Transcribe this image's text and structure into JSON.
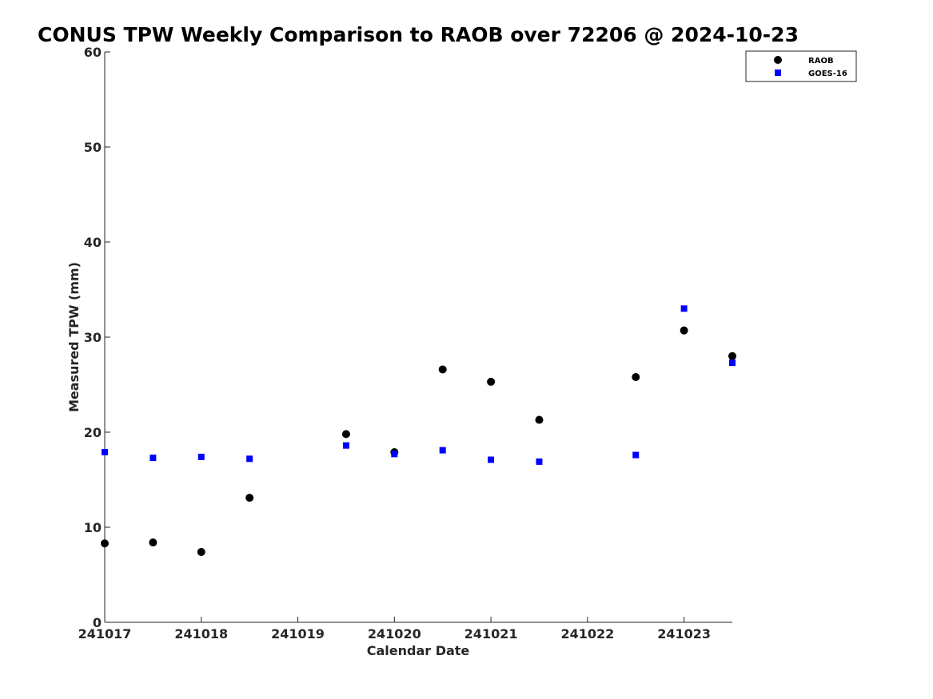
{
  "chart_data": {
    "type": "scatter",
    "title": "CONUS TPW Weekly Comparison to RAOB over 72206 @ 2024-10-23",
    "xlabel": "Calendar Date",
    "ylabel": "Measured TPW (mm)",
    "x_ticks": [
      "241017",
      "241018",
      "241019",
      "241020",
      "241021",
      "241022",
      "241023"
    ],
    "y_ticks": [
      "0",
      "10",
      "20",
      "30",
      "40",
      "50",
      "60"
    ],
    "xlim": [
      0,
      6.5
    ],
    "ylim": [
      0,
      60
    ],
    "grid": false,
    "legend_position": "top-right",
    "series": [
      {
        "name": "RAOB",
        "marker": "circle",
        "color": "#000000",
        "x": [
          0,
          0.5,
          1,
          1.5,
          2.5,
          3,
          3.5,
          4,
          4.5,
          5.5,
          6,
          6.5
        ],
        "y": [
          8.3,
          8.4,
          7.4,
          13.1,
          19.8,
          17.9,
          26.6,
          25.3,
          21.3,
          25.8,
          30.7,
          28.0
        ]
      },
      {
        "name": "GOES-16",
        "marker": "square",
        "color": "#0000ff",
        "x": [
          0,
          0.5,
          1,
          1.5,
          2.5,
          3,
          3.5,
          4,
          4.5,
          5.5,
          6,
          6.5
        ],
        "y": [
          17.9,
          17.3,
          17.4,
          17.2,
          18.6,
          17.7,
          18.1,
          17.1,
          16.9,
          17.6,
          33.0,
          27.3
        ]
      }
    ]
  }
}
